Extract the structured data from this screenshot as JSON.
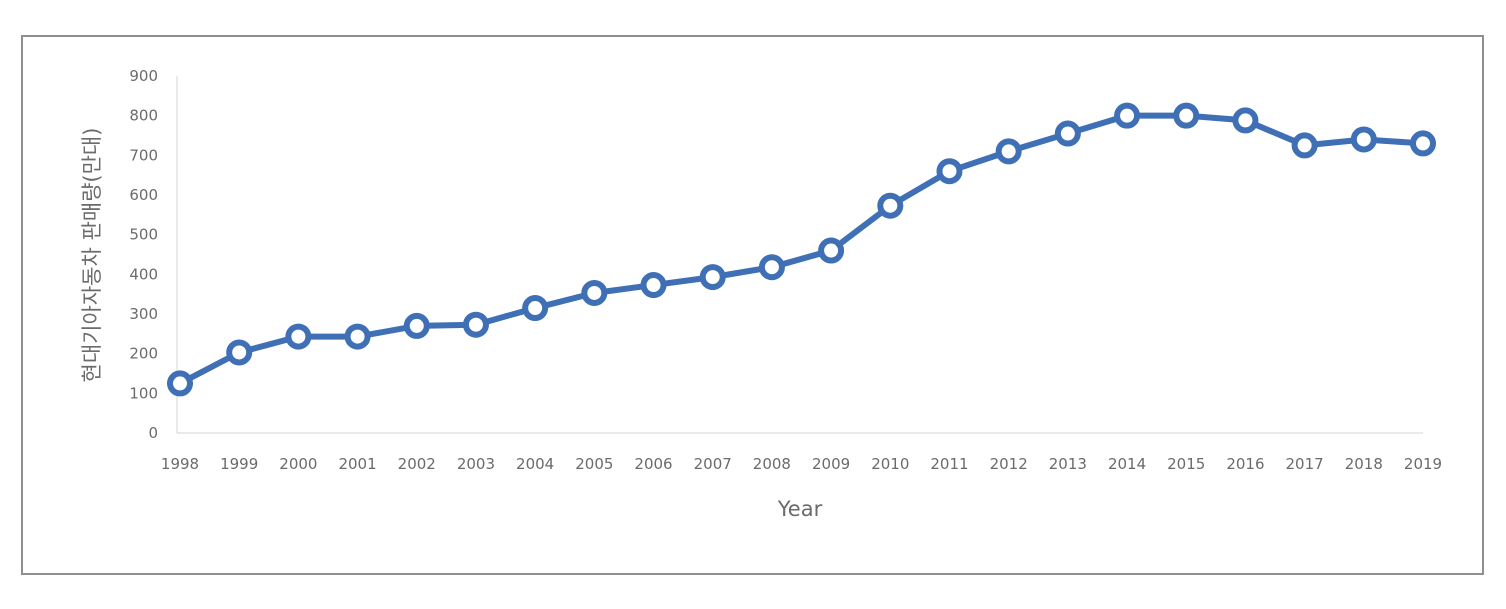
{
  "chart_data": {
    "type": "line",
    "title": "",
    "xlabel": "Year",
    "ylabel": "현대기아자동차 판매량(만대)",
    "ylim": [
      0,
      900
    ],
    "yticks": [
      0,
      100,
      200,
      300,
      400,
      500,
      600,
      700,
      800,
      900
    ],
    "grid": false,
    "legend": "none",
    "x": [
      "1998",
      "1999",
      "2000",
      "2001",
      "2002",
      "2003",
      "2004",
      "2005",
      "2006",
      "2007",
      "2008",
      "2009",
      "2010",
      "2011",
      "2012",
      "2013",
      "2014",
      "2015",
      "2016",
      "2017",
      "2018",
      "2019"
    ],
    "series": [
      {
        "color": "#3F6FB5",
        "values": [
          125,
          203,
          243,
          243,
          270,
          273,
          315,
          353,
          373,
          393,
          418,
          460,
          573,
          660,
          710,
          755,
          800,
          800,
          788,
          725,
          740,
          730
        ]
      }
    ]
  }
}
